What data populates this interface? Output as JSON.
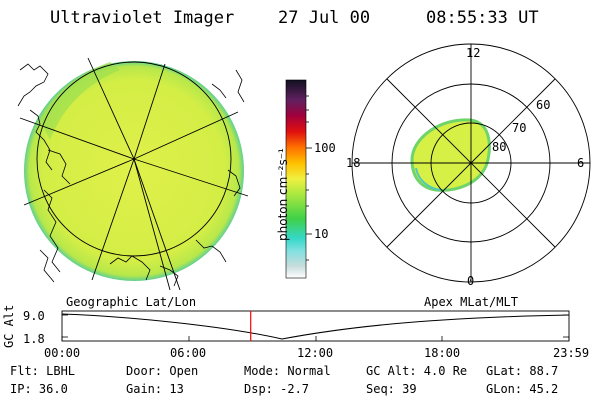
{
  "header": {
    "title": "Ultraviolet Imager",
    "date": "27 Jul 00",
    "time": "08:55:33 UT"
  },
  "colorbar": {
    "unit_label": "photon cm⁻²s⁻¹",
    "ticks": [
      "100",
      "10"
    ]
  },
  "polar_plot": {
    "mlt_labels": [
      "12",
      "18",
      "6",
      "0"
    ],
    "mlat_labels": [
      "60",
      "70",
      "80"
    ]
  },
  "altitude_plot": {
    "ylabel": "GC Alt",
    "y_ticks": [
      "9.0",
      "1.8"
    ],
    "left_caption": "Geographic Lat/Lon",
    "right_caption": "Apex MLat/MLT",
    "time_ticks": [
      "00:00",
      "06:00",
      "12:00",
      "18:00",
      "23:59"
    ],
    "marker_time": "08:55:33",
    "marker_color": "#ff0000"
  },
  "info": {
    "filter": "Flt: LBHL",
    "ip": "IP: 36.0",
    "door": "Door: Open",
    "gain": "Gain: 13",
    "mode": "Mode: Normal",
    "dsp": "Dsp:   -2.7",
    "gc_alt": "GC Alt: 4.0 Re",
    "seq": "Seq: 39",
    "glat": "GLat:  88.7",
    "glon": "GLon:  45.2"
  },
  "colors": {
    "emission": "#d6f046",
    "emission_edge": "#6fd46a",
    "emission_rim": "#52c8b8"
  }
}
